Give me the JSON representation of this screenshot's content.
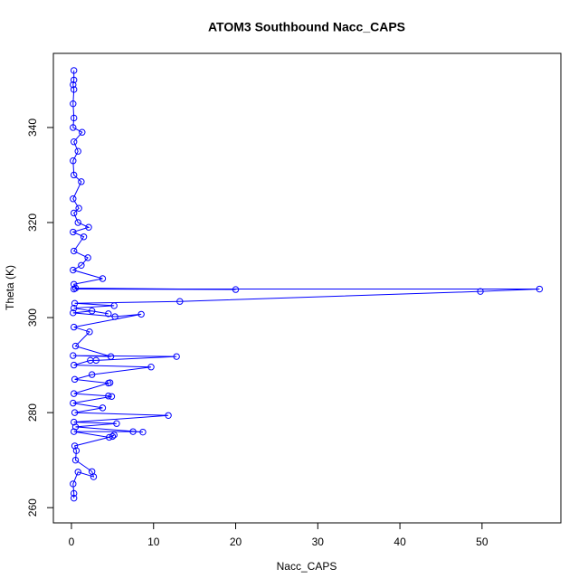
{
  "chart_data": {
    "type": "line",
    "markers": true,
    "title": "ATOM3 Southbound Nacc_CAPS",
    "x_label": "Nacc_CAPS",
    "y_label": "Theta (K)",
    "color": "#0000ff",
    "x": [
      0.3,
      0.3,
      0.2,
      0.8,
      2.7,
      2.5,
      0.5,
      0.6,
      0.4,
      5,
      5.2,
      4.6,
      0.3,
      7.5,
      8.7,
      0.5,
      5.5,
      0.3,
      11.8,
      0.4,
      3.8,
      0.2,
      4.9,
      4.5,
      0.3,
      4.7,
      4.5,
      0.4,
      2.5,
      9.7,
      0.3,
      2.3,
      3,
      12.8,
      0.2,
      4.8,
      0.5,
      2.2,
      0.3,
      8.5,
      5.3,
      0.2,
      2.5,
      4.5,
      0.3,
      5.2,
      0.4,
      13.2,
      49.8,
      57,
      0.3,
      20,
      0.5,
      0.3,
      3.8,
      0.2,
      1.2,
      2,
      0.3,
      1.5,
      0.2,
      2.1,
      0.8,
      0.3,
      0.9,
      0.2,
      1.2,
      0.3,
      0.2,
      0.8,
      0.3,
      1.3,
      0.2,
      0.3,
      0.2,
      0.3,
      0.2,
      0.3,
      0.3
    ],
    "values": [
      262,
      263,
      265,
      267.5,
      266.5,
      267.6,
      270,
      272,
      273,
      275,
      275.3,
      274.8,
      276,
      276,
      275.9,
      277,
      277.7,
      278,
      279.4,
      280,
      281,
      282,
      283.4,
      283.5,
      284,
      286.3,
      286.2,
      287,
      288,
      289.6,
      290,
      291,
      291,
      291.8,
      292,
      291.8,
      294,
      297,
      298,
      300.7,
      300.2,
      301,
      301.4,
      300.8,
      302,
      302.5,
      303,
      303.4,
      305.5,
      306,
      306,
      305.9,
      306.2,
      307,
      308.2,
      310,
      311,
      312.6,
      314,
      317,
      318,
      319,
      320,
      322,
      323,
      325,
      328.6,
      330,
      333,
      335,
      337,
      339,
      340,
      342,
      345,
      348,
      349,
      350,
      352
    ],
    "xlim": [
      -2.2,
      59.6
    ],
    "ylim": [
      256.8,
      355.6
    ],
    "xticks": [
      0,
      10,
      20,
      30,
      40,
      50
    ],
    "yticks": [
      260,
      280,
      300,
      320,
      340
    ]
  }
}
